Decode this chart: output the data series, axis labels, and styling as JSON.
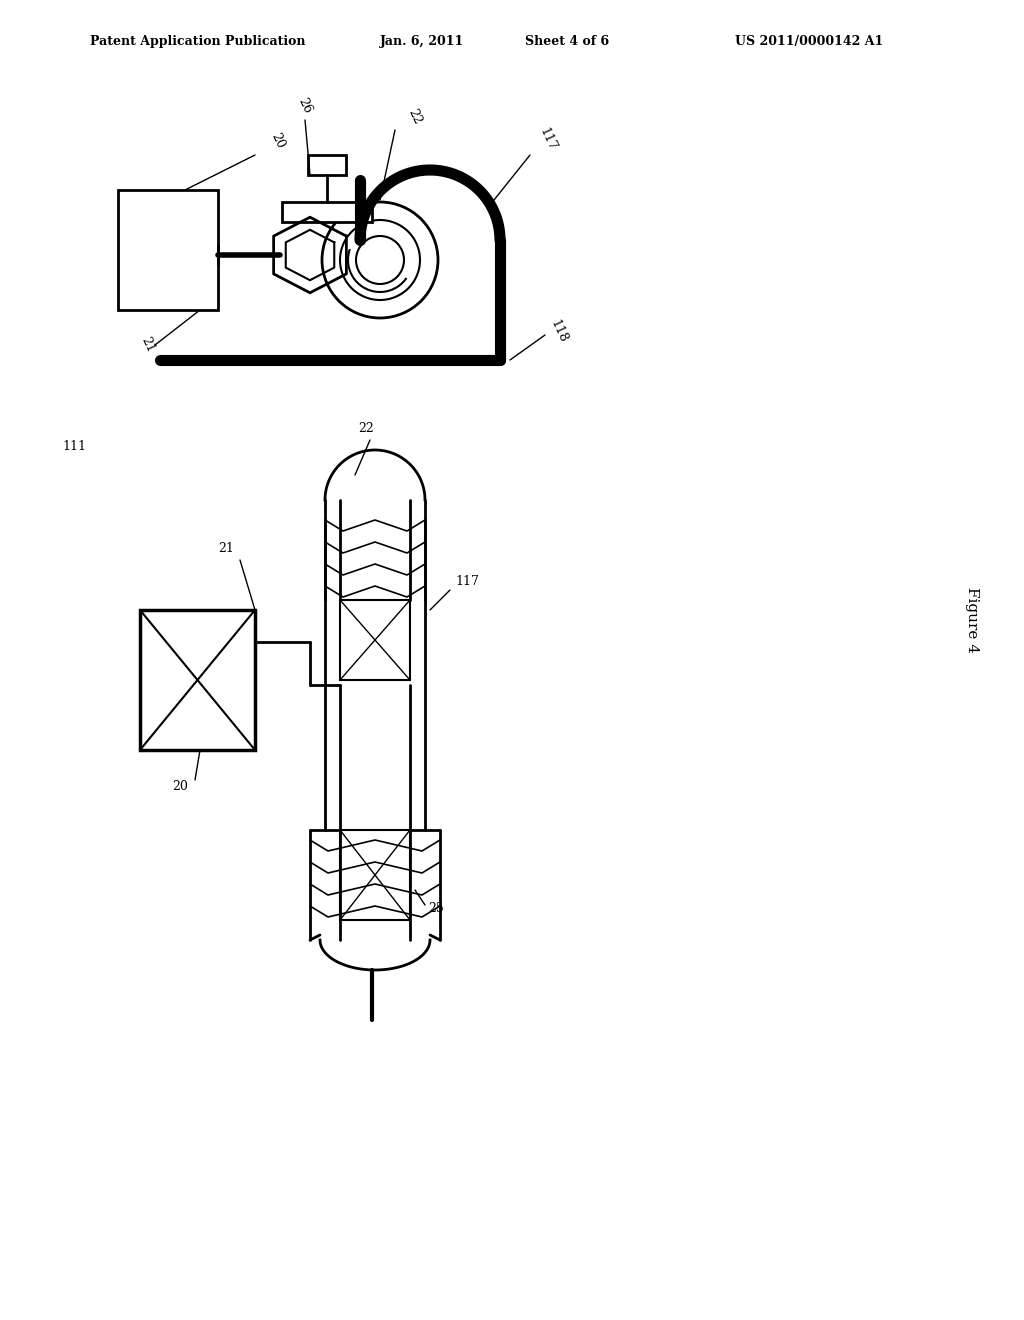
{
  "bg_color": "#ffffff",
  "header_text": "Patent Application Publication",
  "header_date": "Jan. 6, 2011",
  "header_sheet": "Sheet 4 of 6",
  "header_patent": "US 2011/0000142 A1",
  "figure_label": "Figure 4"
}
